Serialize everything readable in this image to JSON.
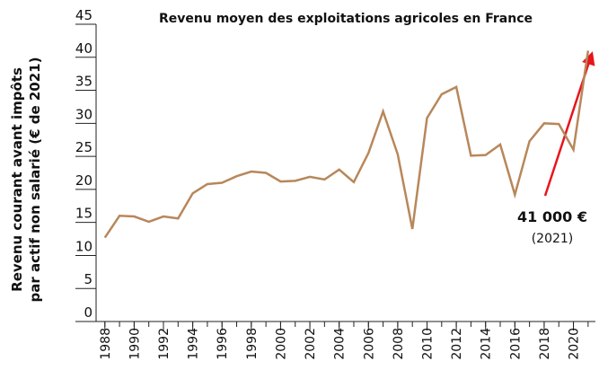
{
  "chart_data": {
    "type": "line",
    "title": "Revenu moyen des exploitations agricoles en France",
    "y_label_lines": [
      "Revenu courant avant impôts",
      "par actif non salarié (€ de 2021)"
    ],
    "annotation": {
      "value_text": "41 000 €",
      "year_text": "(2021)"
    },
    "x": [
      1988,
      1989,
      1990,
      1991,
      1992,
      1993,
      1994,
      1995,
      1996,
      1997,
      1998,
      1999,
      2000,
      2001,
      2002,
      2003,
      2004,
      2005,
      2006,
      2007,
      2008,
      2009,
      2010,
      2011,
      2012,
      2013,
      2014,
      2015,
      2016,
      2017,
      2018,
      2019,
      2020,
      2021
    ],
    "series": [
      {
        "name": "Revenu",
        "color": "#b8875a",
        "values": [
          12.7,
          16.0,
          15.9,
          15.1,
          15.9,
          15.6,
          19.4,
          20.8,
          21.0,
          22.0,
          22.7,
          22.5,
          21.2,
          21.3,
          21.9,
          21.5,
          23.0,
          21.1,
          25.5,
          31.8,
          25.3,
          14.0,
          30.8,
          34.4,
          35.5,
          25.1,
          25.2,
          26.8,
          19.2,
          27.3,
          30.0,
          29.9,
          26.0,
          41.0
        ]
      }
    ],
    "xlim": [
      1987.4,
      2021.5
    ],
    "xticks": [
      1988,
      1990,
      1992,
      1994,
      1996,
      1998,
      2000,
      2002,
      2004,
      2006,
      2008,
      2010,
      2012,
      2014,
      2016,
      2018,
      2020
    ],
    "ylim": [
      0,
      45
    ],
    "yticks": [
      0,
      5,
      10,
      15,
      20,
      25,
      30,
      35,
      40,
      45
    ]
  }
}
